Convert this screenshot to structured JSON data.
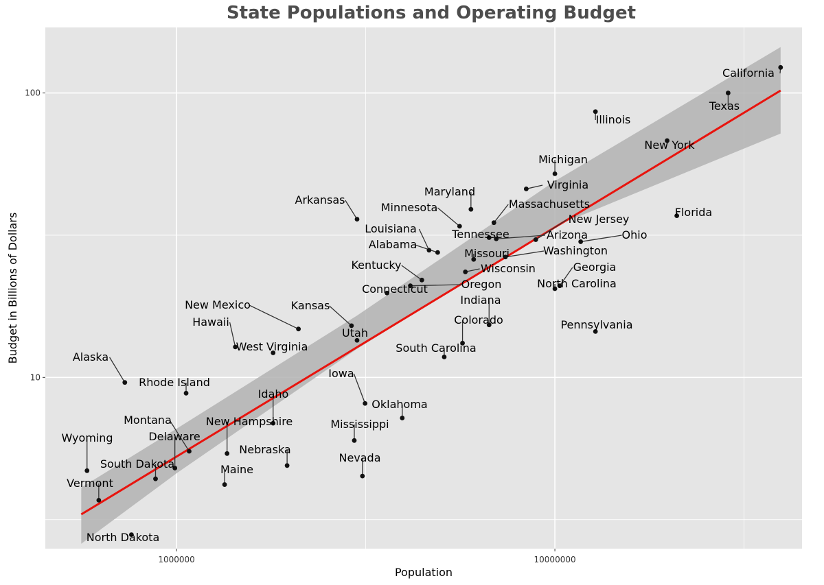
{
  "chart_data": {
    "type": "scatter",
    "title": "State Populations and Operating Budget",
    "xlabel": "Population",
    "ylabel": "Budget in Billions of Dollars",
    "x_scale": "log10",
    "y_scale": "log10",
    "xlim": [
      450000,
      45000000
    ],
    "ylim": [
      2.5,
      170
    ],
    "x_ticks": [
      {
        "value": 1000000,
        "label": "1000000"
      },
      {
        "value": 10000000,
        "label": "10000000"
      }
    ],
    "y_ticks": [
      {
        "value": 10,
        "label": "10"
      },
      {
        "value": 100,
        "label": "100"
      }
    ],
    "grid": true,
    "colors": {
      "panel": "#e5e5e5",
      "grid": "#ffffff",
      "fit_line": "#e8140e",
      "confidence_band": "#b3b3b3",
      "point": "#111111"
    },
    "fit_line": {
      "x": [
        560000,
        39500000
      ],
      "y": [
        3.3,
        102
      ]
    },
    "confidence_band": {
      "x": [
        560000,
        1000000,
        3000000,
        10000000,
        39500000
      ],
      "upper": [
        4.1,
        6.6,
        16.5,
        49,
        145
      ],
      "lower": [
        2.6,
        4.6,
        12.6,
        34,
        72
      ]
    },
    "points": [
      {
        "state": "California",
        "x": 39500000,
        "y": 123
      },
      {
        "state": "Texas",
        "x": 28700000,
        "y": 100
      },
      {
        "state": "Illinois",
        "x": 12800000,
        "y": 86
      },
      {
        "state": "New York",
        "x": 19800000,
        "y": 68
      },
      {
        "state": "Michigan",
        "x": 10000000,
        "y": 52
      },
      {
        "state": "Virginia",
        "x": 8400000,
        "y": 46
      },
      {
        "state": "Maryland",
        "x": 6000000,
        "y": 39
      },
      {
        "state": "Massachusetts",
        "x": 6900000,
        "y": 35
      },
      {
        "state": "Minnesota",
        "x": 5600000,
        "y": 34
      },
      {
        "state": "Arkansas",
        "x": 3000000,
        "y": 36
      },
      {
        "state": "Florida",
        "x": 21000000,
        "y": 37
      },
      {
        "state": "New Jersey",
        "x": 8900000,
        "y": 30.5
      },
      {
        "state": "Ohio",
        "x": 11700000,
        "y": 30
      },
      {
        "state": "Arizona",
        "x": 7000000,
        "y": 30.7
      },
      {
        "state": "Tennessee",
        "x": 6700000,
        "y": 31
      },
      {
        "state": "Louisiana",
        "x": 4650000,
        "y": 28
      },
      {
        "state": "Alabama",
        "x": 4900000,
        "y": 27.5
      },
      {
        "state": "Washington",
        "x": 7400000,
        "y": 26.5
      },
      {
        "state": "Missouri",
        "x": 6100000,
        "y": 26
      },
      {
        "state": "Wisconsin",
        "x": 5800000,
        "y": 23.5
      },
      {
        "state": "Kentucky",
        "x": 4450000,
        "y": 22
      },
      {
        "state": "Oregon",
        "x": 4150000,
        "y": 21
      },
      {
        "state": "Georgia",
        "x": 10300000,
        "y": 21
      },
      {
        "state": "North Carolina",
        "x": 10000000,
        "y": 20.5
      },
      {
        "state": "Connecticut",
        "x": 3600000,
        "y": 19.8
      },
      {
        "state": "Indiana",
        "x": 6700000,
        "y": 15.3
      },
      {
        "state": "Kansas",
        "x": 2900000,
        "y": 15.2
      },
      {
        "state": "New Mexico",
        "x": 2100000,
        "y": 14.8
      },
      {
        "state": "Pennsylvania",
        "x": 12800000,
        "y": 14.5
      },
      {
        "state": "Utah",
        "x": 3000000,
        "y": 13.5
      },
      {
        "state": "Colorado",
        "x": 5700000,
        "y": 13.2
      },
      {
        "state": "Hawaii",
        "x": 1430000,
        "y": 12.8
      },
      {
        "state": "West Virginia",
        "x": 1800000,
        "y": 12.2
      },
      {
        "state": "South Carolina",
        "x": 5100000,
        "y": 11.8
      },
      {
        "state": "Alaska",
        "x": 730000,
        "y": 9.6
      },
      {
        "state": "Rhode Island",
        "x": 1060000,
        "y": 8.8
      },
      {
        "state": "Iowa",
        "x": 3150000,
        "y": 8.1
      },
      {
        "state": "Oklahoma",
        "x": 3950000,
        "y": 7.2
      },
      {
        "state": "Idaho",
        "x": 1800000,
        "y": 6.9
      },
      {
        "state": "Mississippi",
        "x": 2950000,
        "y": 6.0
      },
      {
        "state": "Montana",
        "x": 1080000,
        "y": 5.5
      },
      {
        "state": "New Hampshire",
        "x": 1360000,
        "y": 5.4
      },
      {
        "state": "Delaware",
        "x": 990000,
        "y": 4.8
      },
      {
        "state": "Wyoming",
        "x": 580000,
        "y": 4.7
      },
      {
        "state": "Nebraska",
        "x": 1960000,
        "y": 4.9
      },
      {
        "state": "Nevada",
        "x": 3100000,
        "y": 4.5
      },
      {
        "state": "South Dakota",
        "x": 880000,
        "y": 4.4
      },
      {
        "state": "Maine",
        "x": 1340000,
        "y": 4.2
      },
      {
        "state": "Vermont",
        "x": 623000,
        "y": 3.7
      },
      {
        "state": "North Dakota",
        "x": 760000,
        "y": 2.8
      }
    ]
  }
}
